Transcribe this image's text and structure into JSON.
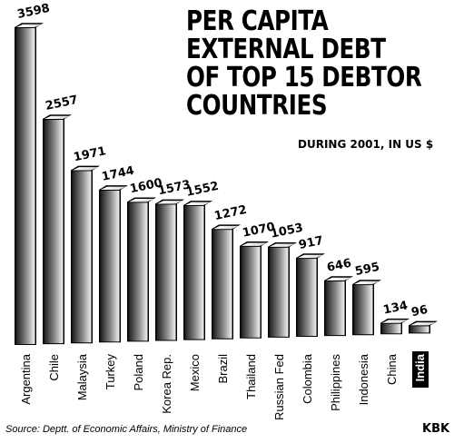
{
  "header": {
    "title_lines": [
      "PER CAPITA",
      "EXTERNAL DEBT",
      "OF TOP 15 DEBTOR",
      "COUNTRIES"
    ],
    "subtitle": "DURING 2001, IN US $"
  },
  "footer": {
    "source": "Source: Deptt. of Economic Affairs, Ministry of Finance",
    "brand": "KBK"
  },
  "chart_data": {
    "type": "bar",
    "title": "PER CAPITA EXTERNAL DEBT OF TOP 15 DEBTOR COUNTRIES",
    "subtitle": "DURING 2001, IN US $",
    "categories": [
      "Argentina",
      "Chile",
      "Malaysia",
      "Turkey",
      "Poland",
      "Korea Rep.",
      "Mexico",
      "Brazil",
      "Thailand",
      "Russian Fed",
      "Colombia",
      "Philippines",
      "Indonesia",
      "China",
      "India"
    ],
    "values": [
      3598,
      2557,
      1971,
      1744,
      1600,
      1573,
      1552,
      1272,
      1070,
      1053,
      917,
      646,
      595,
      134,
      96
    ],
    "highlighted_category": "India",
    "xlabel": "",
    "ylabel": "",
    "ylim": [
      0,
      3598
    ],
    "grid": false,
    "legend": "none",
    "data_labels": true,
    "colors": {
      "bar_dark": "#1c1c1c",
      "bar_light": "#f2f2f2",
      "outline": "#000000",
      "highlight_label_bg": "#000000"
    }
  }
}
